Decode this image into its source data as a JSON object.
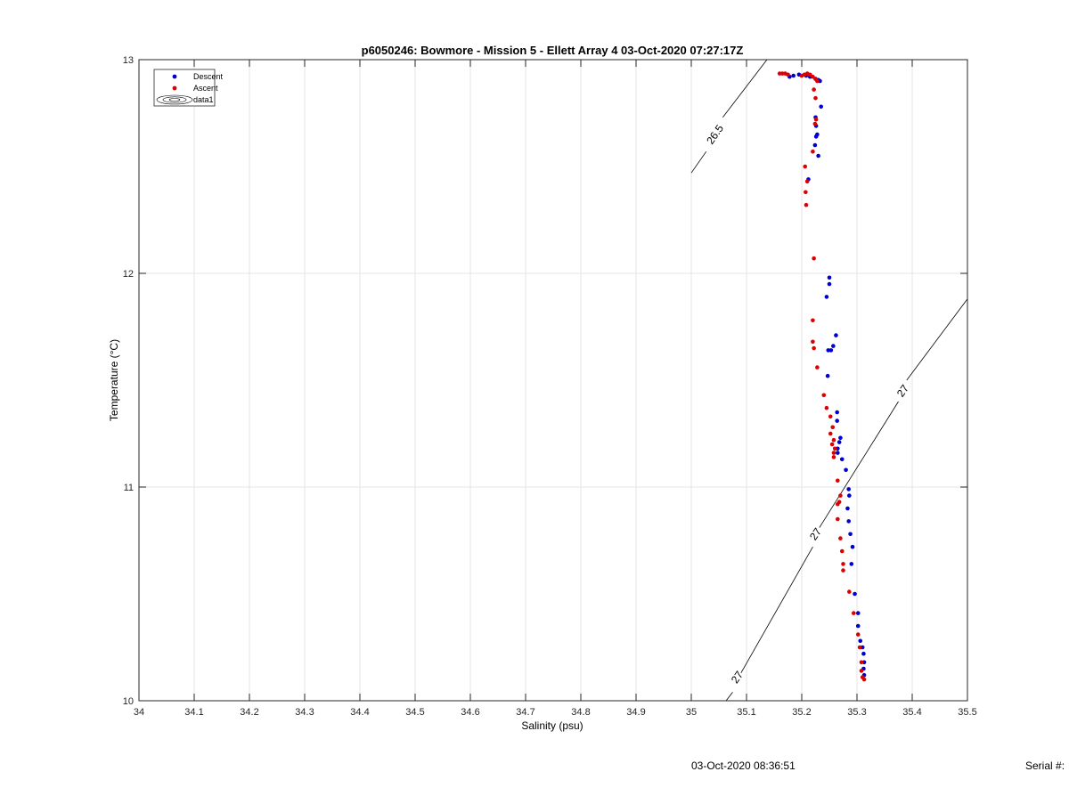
{
  "chart_data": {
    "type": "scatter",
    "title": "p6050246: Bowmore - Mission 5 - Ellett Array 4 03-Oct-2020 07:27:17Z",
    "xlabel": "Salinity (psu)",
    "ylabel": "Temperature (°C)",
    "xlim": [
      34,
      35.5
    ],
    "ylim": [
      10,
      13
    ],
    "xticks": [
      "34",
      "34.1",
      "34.2",
      "34.3",
      "34.4",
      "34.5",
      "34.6",
      "34.7",
      "34.8",
      "34.9",
      "35",
      "35.1",
      "35.2",
      "35.3",
      "35.4",
      "35.5"
    ],
    "yticks": [
      "10",
      "11",
      "12",
      "13"
    ],
    "grid": true,
    "legend_position": "top-left",
    "legend": [
      "Descent",
      "Ascent",
      "data1"
    ],
    "colors": {
      "descent": "#0000cc",
      "ascent": "#dd0000",
      "contour": "#000000"
    },
    "series": [
      {
        "name": "Descent",
        "points": [
          [
            35.178,
            12.92
          ],
          [
            35.185,
            12.925
          ],
          [
            35.195,
            12.93
          ],
          [
            35.208,
            12.925
          ],
          [
            35.215,
            12.92
          ],
          [
            35.225,
            12.91
          ],
          [
            35.23,
            12.905
          ],
          [
            35.233,
            12.9
          ],
          [
            35.235,
            12.78
          ],
          [
            35.225,
            12.73
          ],
          [
            35.226,
            12.69
          ],
          [
            35.228,
            12.65
          ],
          [
            35.226,
            12.64
          ],
          [
            35.224,
            12.6
          ],
          [
            35.23,
            12.55
          ],
          [
            35.212,
            12.44
          ],
          [
            35.25,
            11.98
          ],
          [
            35.25,
            11.95
          ],
          [
            35.245,
            11.89
          ],
          [
            35.262,
            11.71
          ],
          [
            35.257,
            11.66
          ],
          [
            35.253,
            11.64
          ],
          [
            35.248,
            11.64
          ],
          [
            35.247,
            11.52
          ],
          [
            35.264,
            11.35
          ],
          [
            35.264,
            11.31
          ],
          [
            35.27,
            11.23
          ],
          [
            35.268,
            11.21
          ],
          [
            35.265,
            11.18
          ],
          [
            35.265,
            11.16
          ],
          [
            35.273,
            11.13
          ],
          [
            35.28,
            11.08
          ],
          [
            35.285,
            10.99
          ],
          [
            35.286,
            10.96
          ],
          [
            35.283,
            10.9
          ],
          [
            35.285,
            10.84
          ],
          [
            35.288,
            10.78
          ],
          [
            35.292,
            10.72
          ],
          [
            35.29,
            10.64
          ],
          [
            35.296,
            10.5
          ],
          [
            35.302,
            10.41
          ],
          [
            35.302,
            10.35
          ],
          [
            35.306,
            10.28
          ],
          [
            35.31,
            10.25
          ],
          [
            35.312,
            10.22
          ],
          [
            35.313,
            10.18
          ],
          [
            35.312,
            10.15
          ],
          [
            35.313,
            10.12
          ]
        ]
      },
      {
        "name": "Ascent",
        "points": [
          [
            35.16,
            12.935
          ],
          [
            35.165,
            12.935
          ],
          [
            35.17,
            12.935
          ],
          [
            35.175,
            12.93
          ],
          [
            35.2,
            12.925
          ],
          [
            35.205,
            12.93
          ],
          [
            35.21,
            12.935
          ],
          [
            35.215,
            12.93
          ],
          [
            35.22,
            12.92
          ],
          [
            35.225,
            12.91
          ],
          [
            35.228,
            12.9
          ],
          [
            35.222,
            12.86
          ],
          [
            35.225,
            12.82
          ],
          [
            35.226,
            12.72
          ],
          [
            35.224,
            12.7
          ],
          [
            35.22,
            12.57
          ],
          [
            35.206,
            12.5
          ],
          [
            35.21,
            12.43
          ],
          [
            35.207,
            12.38
          ],
          [
            35.208,
            12.32
          ],
          [
            35.222,
            12.07
          ],
          [
            35.22,
            11.78
          ],
          [
            35.22,
            11.68
          ],
          [
            35.222,
            11.65
          ],
          [
            35.228,
            11.56
          ],
          [
            35.24,
            11.43
          ],
          [
            35.245,
            11.37
          ],
          [
            35.252,
            11.33
          ],
          [
            35.256,
            11.28
          ],
          [
            35.252,
            11.25
          ],
          [
            35.258,
            11.22
          ],
          [
            35.255,
            11.2
          ],
          [
            35.26,
            11.18
          ],
          [
            35.258,
            11.16
          ],
          [
            35.258,
            11.14
          ],
          [
            35.265,
            11.03
          ],
          [
            35.27,
            10.96
          ],
          [
            35.268,
            10.93
          ],
          [
            35.265,
            10.92
          ],
          [
            35.265,
            10.85
          ],
          [
            35.27,
            10.76
          ],
          [
            35.273,
            10.7
          ],
          [
            35.275,
            10.64
          ],
          [
            35.275,
            10.61
          ],
          [
            35.286,
            10.51
          ],
          [
            35.294,
            10.41
          ],
          [
            35.302,
            10.31
          ],
          [
            35.305,
            10.25
          ],
          [
            35.308,
            10.18
          ],
          [
            35.308,
            10.14
          ],
          [
            35.31,
            10.11
          ],
          [
            35.313,
            10.1
          ]
        ]
      }
    ],
    "contours": [
      {
        "level": "26.5",
        "segments": [
          [
            [
              35.0,
              12.47
            ],
            [
              35.027,
              12.57
            ]
          ],
          [
            [
              35.057,
              12.73
            ],
            [
              35.137,
              13.0
            ]
          ]
        ],
        "labels": [
          {
            "text": "26.5",
            "x": 35.043,
            "y": 12.65,
            "angle": -55
          }
        ]
      },
      {
        "level": "27",
        "segments": [
          [
            [
              35.063,
              10.0
            ],
            [
              35.075,
              10.04
            ]
          ],
          [
            [
              35.09,
              10.13
            ],
            [
              35.22,
              10.72
            ]
          ],
          [
            [
              35.232,
              10.81
            ],
            [
              35.375,
              11.4
            ]
          ],
          [
            [
              35.39,
              11.5
            ],
            [
              35.5,
              11.88
            ]
          ]
        ],
        "labels": [
          {
            "text": "27",
            "x": 35.083,
            "y": 10.11,
            "angle": -55
          },
          {
            "text": "27",
            "x": 35.225,
            "y": 10.78,
            "angle": -55
          },
          {
            "text": "27",
            "x": 35.383,
            "y": 11.45,
            "angle": -55
          }
        ]
      }
    ]
  },
  "footer": {
    "timestamp": "03-Oct-2020 08:36:51",
    "serial_label": "Serial #:"
  }
}
